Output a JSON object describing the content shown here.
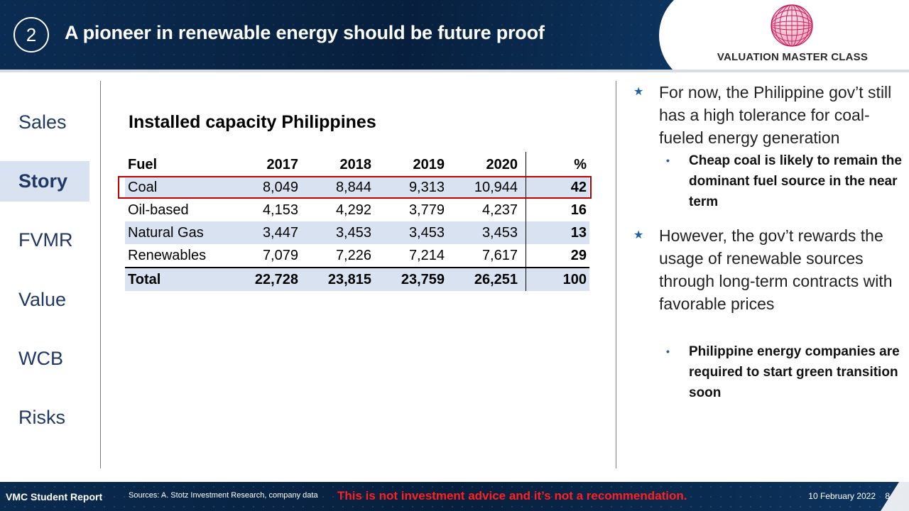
{
  "header": {
    "section_number": "2",
    "title": "A pioneer in renewable energy should be future proof",
    "logo_text": "VALUATION MASTER CLASS"
  },
  "nav": {
    "items": [
      {
        "label": "Sales",
        "active": false
      },
      {
        "label": "Story",
        "active": true
      },
      {
        "label": "FVMR",
        "active": false
      },
      {
        "label": "Value",
        "active": false
      },
      {
        "label": "WCB",
        "active": false
      },
      {
        "label": "Risks",
        "active": false
      }
    ]
  },
  "table": {
    "title": "Installed capacity Philippines",
    "headers": [
      "Fuel",
      "2017",
      "2018",
      "2019",
      "2020",
      "%"
    ],
    "rows": [
      [
        "Coal",
        "8,049",
        "8,844",
        "9,313",
        "10,944",
        "42"
      ],
      [
        "Oil-based",
        "4,153",
        "4,292",
        "3,779",
        "4,237",
        "16"
      ],
      [
        "Natural Gas",
        "3,447",
        "3,453",
        "3,453",
        "3,453",
        "13"
      ],
      [
        "Renewables",
        "7,079",
        "7,226",
        "7,214",
        "7,617",
        "29"
      ]
    ],
    "total": [
      "Total",
      "22,728",
      "23,815",
      "23,759",
      "26,251",
      "100"
    ],
    "highlight_color": "#c00000"
  },
  "bullets": [
    {
      "text": "For now, the Philippine gov’t still has a high tolerance for coal-fueled energy generation",
      "sub": "Cheap coal is likely to remain the dominant fuel source in the near term"
    },
    {
      "text": "However, the gov’t rewards the usage of renewable sources through long-term contracts with favorable prices",
      "sub": "Philippine energy companies are required to start green transition soon"
    }
  ],
  "footer": {
    "left": "VMC Student Report",
    "sources": "Sources: A. Stotz Investment Research, company data",
    "warning": "This is not investment advice and it’s not a recommendation.",
    "date": "10 February 2022",
    "page": "8"
  },
  "colors": {
    "navy": "#0b2c52",
    "accent_blue": "#1f3864",
    "row_shade": "#d9e2f1",
    "warning_red": "#ff2020"
  }
}
